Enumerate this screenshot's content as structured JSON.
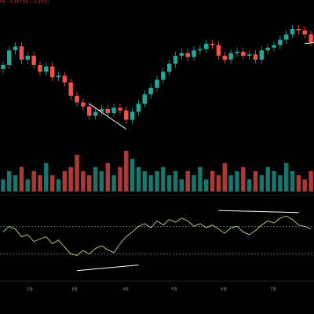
{
  "header": {
    "price_change": "94 −1,297.58 (−1.15%)"
  },
  "colors": {
    "background": "#000000",
    "up": "#26a69a",
    "down": "#ef5350",
    "rsi_line": "#b9d98f",
    "trendline": "#ffffff",
    "band": "#8a8a8a"
  },
  "chart_data": [
    {
      "type": "candlestick",
      "x_tick_labels": [
        "2월",
        "3월",
        "4월",
        "5월",
        "6월",
        "7월"
      ],
      "trendlines": [
        {
          "from": [
            14,
            0.34
          ],
          "to": [
            20,
            0.15
          ],
          "label": ""
        },
        {
          "from": [
            49,
            0.79
          ],
          "to": [
            72,
            0.92
          ],
          "label": ""
        }
      ],
      "closes": [
        0.63,
        0.74,
        0.77,
        0.67,
        0.7,
        0.63,
        0.58,
        0.62,
        0.54,
        0.55,
        0.5,
        0.4,
        0.35,
        0.32,
        0.25,
        0.28,
        0.3,
        0.27,
        0.31,
        0.29,
        0.22,
        0.28,
        0.34,
        0.41,
        0.46,
        0.52,
        0.58,
        0.64,
        0.7,
        0.72,
        0.69,
        0.74,
        0.75,
        0.79,
        0.78,
        0.7,
        0.67,
        0.72,
        0.73,
        0.7,
        0.71,
        0.67,
        0.74,
        0.76,
        0.78,
        0.82,
        0.86,
        0.9,
        0.89,
        0.86,
        0.8
      ],
      "opens": [
        0.6,
        0.63,
        0.74,
        0.77,
        0.67,
        0.7,
        0.63,
        0.58,
        0.62,
        0.54,
        0.55,
        0.5,
        0.4,
        0.35,
        0.32,
        0.25,
        0.28,
        0.3,
        0.27,
        0.31,
        0.29,
        0.22,
        0.28,
        0.34,
        0.41,
        0.46,
        0.52,
        0.58,
        0.64,
        0.7,
        0.72,
        0.69,
        0.74,
        0.75,
        0.79,
        0.78,
        0.7,
        0.67,
        0.72,
        0.73,
        0.7,
        0.71,
        0.67,
        0.74,
        0.76,
        0.78,
        0.82,
        0.86,
        0.9,
        0.89,
        0.86
      ]
    },
    {
      "type": "bar",
      "name": "",
      "values": [
        0.3,
        0.5,
        0.4,
        0.6,
        0.3,
        0.5,
        0.4,
        0.7,
        0.4,
        0.3,
        0.5,
        0.6,
        0.9,
        0.5,
        0.4,
        0.6,
        0.5,
        0.7,
        0.4,
        0.6,
        1.0,
        0.8,
        0.6,
        0.5,
        0.4,
        0.5,
        0.6,
        0.4,
        0.5,
        0.3,
        0.5,
        0.4,
        0.6,
        0.3,
        0.5,
        0.4,
        0.7,
        0.4,
        0.5,
        0.6,
        0.3,
        0.5,
        0.4,
        0.6,
        0.5,
        0.4,
        0.7,
        0.5,
        0.4,
        0.3,
        0.5
      ]
    },
    {
      "type": "line",
      "name": "",
      "values": [
        0.62,
        0.7,
        0.66,
        0.55,
        0.58,
        0.48,
        0.52,
        0.55,
        0.45,
        0.5,
        0.4,
        0.3,
        0.28,
        0.35,
        0.3,
        0.38,
        0.42,
        0.36,
        0.32,
        0.45,
        0.55,
        0.62,
        0.7,
        0.74,
        0.68,
        0.78,
        0.72,
        0.8,
        0.76,
        0.82,
        0.78,
        0.7,
        0.74,
        0.68,
        0.72,
        0.66,
        0.6,
        0.68,
        0.7,
        0.62,
        0.58,
        0.64,
        0.72,
        0.78,
        0.75,
        0.82,
        0.85,
        0.8,
        0.72,
        0.7,
        0.66
      ],
      "bands": [
        0.7,
        0.3
      ],
      "trendlines": [
        {
          "from": [
            12,
            0.06
          ],
          "to": [
            22,
            0.14
          ],
          "label": ""
        },
        {
          "from": [
            35,
            0.93
          ],
          "to": [
            48,
            0.9
          ],
          "label": ""
        }
      ]
    }
  ]
}
